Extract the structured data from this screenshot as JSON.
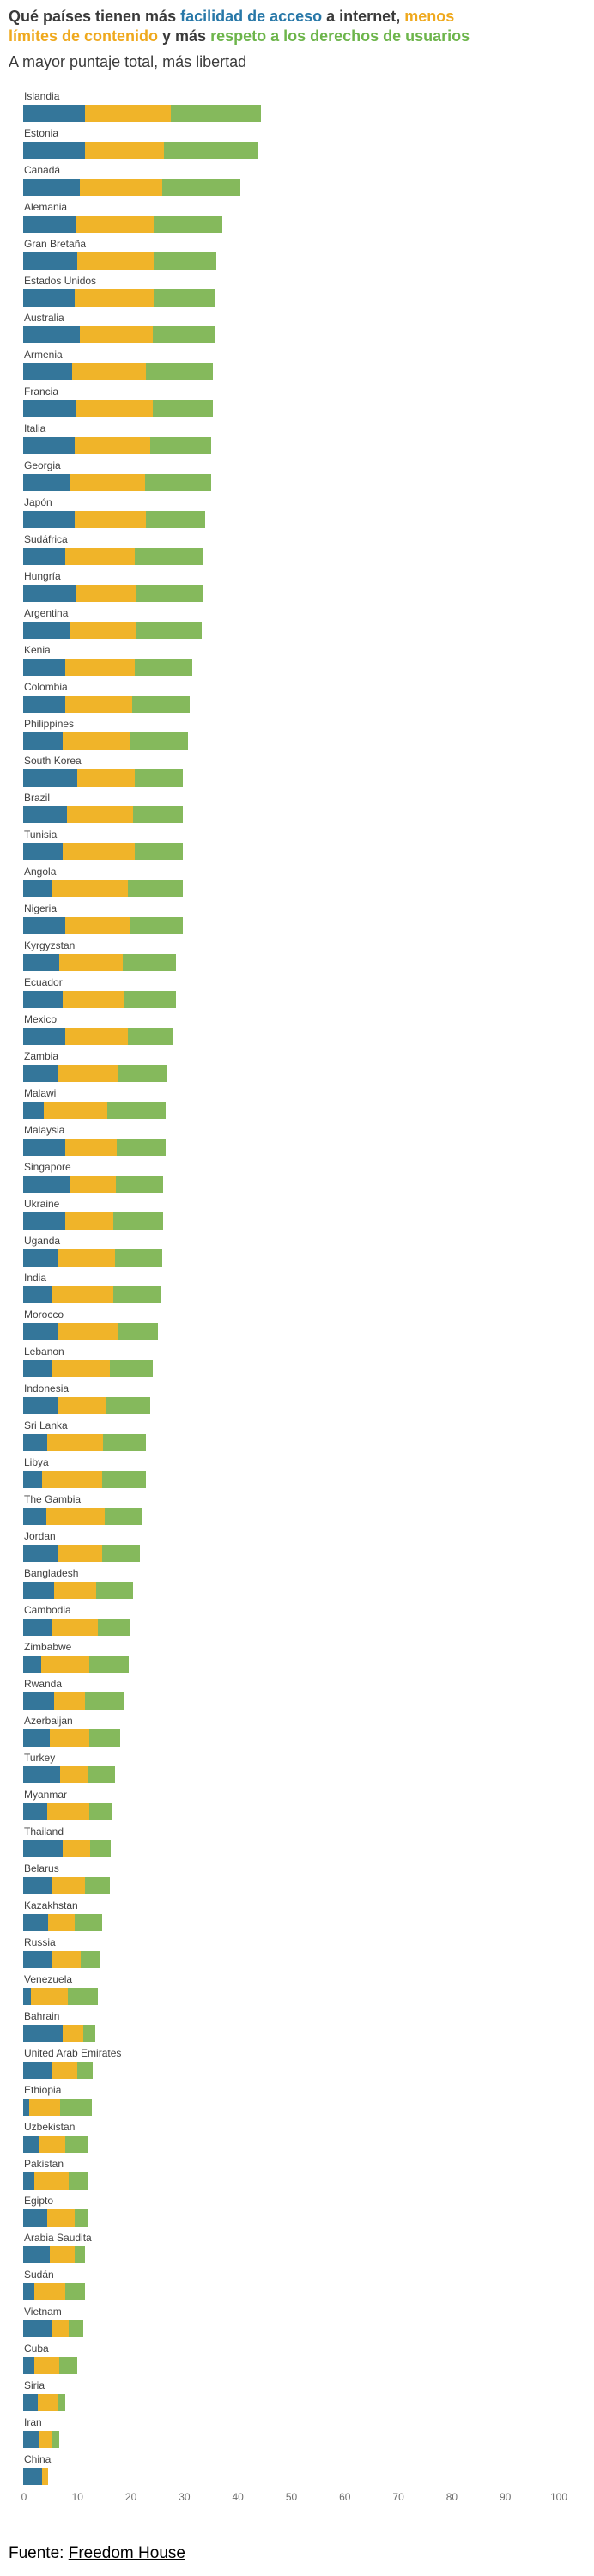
{
  "title": {
    "part1": "Qué países tienen más ",
    "access": "facilidad de acceso",
    "part2": " a internet, ",
    "limits_line1": "menos",
    "limits_line2": "límites de contenido",
    "part3": " y más ",
    "rights": "respeto a los derechos de usuarios"
  },
  "subtitle": "A mayor puntaje total, más libertad",
  "footer": {
    "prefix": "Fuente: ",
    "link": "Freedom House"
  },
  "colors": {
    "title_blue": "#2878a8",
    "title_orange": "#efa91e",
    "title_green": "#6db54b",
    "bar_blue": "#34769a",
    "bar_yellow": "#f0b429",
    "bar_green": "#85b95c"
  },
  "chart_data": {
    "type": "bar",
    "stacked": true,
    "orientation": "horizontal",
    "xlim": [
      0,
      100
    ],
    "x_ticks": [
      0,
      10,
      20,
      30,
      40,
      50,
      60,
      70,
      80,
      90,
      100
    ],
    "grid": false,
    "legend": "in-title",
    "series": [
      "facilidad de acceso",
      "límites de contenido",
      "respeto a los derechos de usuarios"
    ],
    "countries": [
      {
        "name": "Islandia",
        "access": 11.5,
        "limits": 16.1,
        "rights": 16.8
      },
      {
        "name": "Estonia",
        "access": 11.5,
        "limits": 14.8,
        "rights": 17.6
      },
      {
        "name": "Canadá",
        "access": 10.6,
        "limits": 15.4,
        "rights": 14.7
      },
      {
        "name": "Alemania",
        "access": 9.9,
        "limits": 14.5,
        "rights": 12.9
      },
      {
        "name": "Gran Bretaña",
        "access": 10.1,
        "limits": 14.3,
        "rights": 11.7
      },
      {
        "name": "Estados Unidos",
        "access": 9.7,
        "limits": 14.7,
        "rights": 11.6
      },
      {
        "name": "Australia",
        "access": 10.6,
        "limits": 13.7,
        "rights": 11.6
      },
      {
        "name": "Armenia",
        "access": 9.2,
        "limits": 13.7,
        "rights": 12.6
      },
      {
        "name": "Francia",
        "access": 10.0,
        "limits": 14.3,
        "rights": 11.2
      },
      {
        "name": "Italia",
        "access": 9.7,
        "limits": 14.0,
        "rights": 11.4
      },
      {
        "name": "Georgia",
        "access": 8.6,
        "limits": 14.2,
        "rights": 12.3
      },
      {
        "name": "Japón",
        "access": 9.7,
        "limits": 13.2,
        "rights": 11.2
      },
      {
        "name": "Sudáfrica",
        "access": 7.8,
        "limits": 13.1,
        "rights": 12.6
      },
      {
        "name": "Hungría",
        "access": 9.8,
        "limits": 11.3,
        "rights": 12.4
      },
      {
        "name": "Argentina",
        "access": 8.7,
        "limits": 12.3,
        "rights": 12.4
      },
      {
        "name": "Kenia",
        "access": 7.8,
        "limits": 13.1,
        "rights": 10.8
      },
      {
        "name": "Colombia",
        "access": 7.8,
        "limits": 12.6,
        "rights": 10.7
      },
      {
        "name": "Philippines",
        "access": 7.3,
        "limits": 12.7,
        "rights": 10.9
      },
      {
        "name": "South Korea",
        "access": 10.1,
        "limits": 10.8,
        "rights": 8.9
      },
      {
        "name": "Brazil",
        "access": 8.2,
        "limits": 12.4,
        "rights": 9.2
      },
      {
        "name": "Tunisia",
        "access": 7.4,
        "limits": 13.5,
        "rights": 8.9
      },
      {
        "name": "Angola",
        "access": 5.4,
        "limits": 14.2,
        "rights": 10.2
      },
      {
        "name": "Nigeria",
        "access": 7.8,
        "limits": 12.2,
        "rights": 9.8
      },
      {
        "name": "Kyrgyzstan",
        "access": 6.8,
        "limits": 11.9,
        "rights": 9.9
      },
      {
        "name": "Ecuador",
        "access": 7.3,
        "limits": 11.4,
        "rights": 9.8
      },
      {
        "name": "Mexico",
        "access": 7.8,
        "limits": 11.8,
        "rights": 8.4
      },
      {
        "name": "Zambia",
        "access": 6.4,
        "limits": 11.3,
        "rights": 9.3
      },
      {
        "name": "Malawi",
        "access": 3.9,
        "limits": 11.9,
        "rights": 10.8
      },
      {
        "name": "Malaysia",
        "access": 7.8,
        "limits": 9.7,
        "rights": 9.1
      },
      {
        "name": "Singapore",
        "access": 8.6,
        "limits": 8.7,
        "rights": 8.9
      },
      {
        "name": "Ukraine",
        "access": 7.8,
        "limits": 9.0,
        "rights": 9.3
      },
      {
        "name": "Uganda",
        "access": 6.4,
        "limits": 10.8,
        "rights": 8.8
      },
      {
        "name": "India",
        "access": 5.4,
        "limits": 11.4,
        "rights": 8.9
      },
      {
        "name": "Morocco",
        "access": 6.4,
        "limits": 11.2,
        "rights": 7.6
      },
      {
        "name": "Lebanon",
        "access": 5.4,
        "limits": 10.8,
        "rights": 8.1
      },
      {
        "name": "Indonesia",
        "access": 6.4,
        "limits": 9.1,
        "rights": 8.2
      },
      {
        "name": "Sri Lanka",
        "access": 4.5,
        "limits": 10.4,
        "rights": 8.1
      },
      {
        "name": "Libya",
        "access": 3.5,
        "limits": 11.3,
        "rights": 8.1
      },
      {
        "name": "The Gambia",
        "access": 4.3,
        "limits": 11.0,
        "rights": 7.0
      },
      {
        "name": "Jordan",
        "access": 6.4,
        "limits": 8.4,
        "rights": 7.1
      },
      {
        "name": "Bangladesh",
        "access": 5.8,
        "limits": 7.9,
        "rights": 6.8
      },
      {
        "name": "Cambodia",
        "access": 5.4,
        "limits": 8.6,
        "rights": 6.0
      },
      {
        "name": "Zimbabwe",
        "access": 3.3,
        "limits": 9.0,
        "rights": 7.4
      },
      {
        "name": "Rwanda",
        "access": 5.8,
        "limits": 5.7,
        "rights": 7.5
      },
      {
        "name": "Azerbaijan",
        "access": 4.9,
        "limits": 7.4,
        "rights": 5.9
      },
      {
        "name": "Turkey",
        "access": 6.9,
        "limits": 5.3,
        "rights": 4.9
      },
      {
        "name": "Myanmar",
        "access": 4.5,
        "limits": 7.8,
        "rights": 4.4
      },
      {
        "name": "Thailand",
        "access": 7.3,
        "limits": 5.2,
        "rights": 3.8
      },
      {
        "name": "Belarus",
        "access": 5.4,
        "limits": 6.1,
        "rights": 4.7
      },
      {
        "name": "Kazakhstan",
        "access": 4.6,
        "limits": 5.0,
        "rights": 5.1
      },
      {
        "name": "Russia",
        "access": 5.4,
        "limits": 5.4,
        "rights": 3.6
      },
      {
        "name": "Venezuela",
        "access": 1.5,
        "limits": 6.8,
        "rights": 5.6
      },
      {
        "name": "Bahrain",
        "access": 7.3,
        "limits": 3.9,
        "rights": 2.3
      },
      {
        "name": "United Arab Emirates",
        "access": 5.4,
        "limits": 4.7,
        "rights": 2.9
      },
      {
        "name": "Ethiopia",
        "access": 1.1,
        "limits": 5.8,
        "rights": 6.0
      },
      {
        "name": "Uzbekistan",
        "access": 3.1,
        "limits": 4.7,
        "rights": 4.2
      },
      {
        "name": "Pakistan",
        "access": 2.1,
        "limits": 6.4,
        "rights": 3.5
      },
      {
        "name": "Egipto",
        "access": 4.5,
        "limits": 5.2,
        "rights": 2.3
      },
      {
        "name": "Arabia Saudita",
        "access": 5.0,
        "limits": 4.7,
        "rights": 1.8
      },
      {
        "name": "Sudán",
        "access": 2.1,
        "limits": 5.7,
        "rights": 3.7
      },
      {
        "name": "Vietnam",
        "access": 5.4,
        "limits": 3.1,
        "rights": 2.7
      },
      {
        "name": "Cuba",
        "access": 2.1,
        "limits": 4.6,
        "rights": 3.4
      },
      {
        "name": "Siria",
        "access": 2.7,
        "limits": 3.9,
        "rights": 1.2
      },
      {
        "name": "Iran",
        "access": 3.1,
        "limits": 2.3,
        "rights": 1.4
      },
      {
        "name": "China",
        "access": 3.5,
        "limits": 1.1,
        "rights": 0
      }
    ]
  }
}
